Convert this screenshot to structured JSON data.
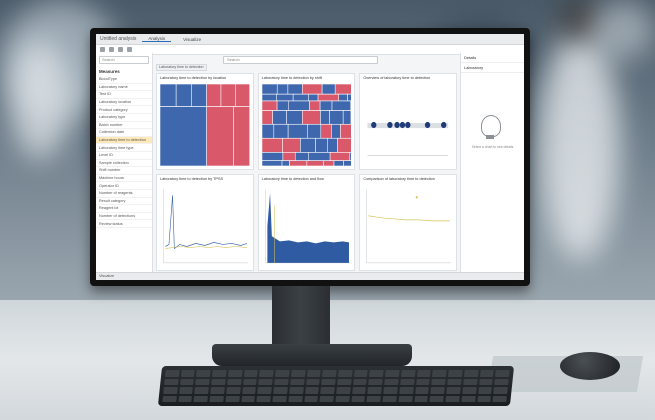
{
  "app": {
    "window_title": "Untitled analysis",
    "tabs": [
      "Analysis",
      "Visualize"
    ],
    "sidebar_header": "Measures",
    "sidebar_search": "Search",
    "main_search_placeholder": "Search",
    "filter_chip": "Laboratory time to detection",
    "status": "Visualize",
    "right_panel": {
      "header1": "Details",
      "header2": "Laboratory",
      "hint": "Select a chart to see details"
    },
    "sidebar_items": [
      "BloodType",
      "Laboratory name",
      "Test ID",
      "Laboratory location",
      "Product category",
      "Laboratory type",
      "Batch number",
      "Collection date",
      "Laboratory time to detection",
      "Laboratory time type",
      "Level ID",
      "Sample collection",
      "Shift number",
      "Machine hours",
      "Operator ID",
      "Number of reagents",
      "Result category",
      "Reagent lot",
      "Number of detections",
      "Review status"
    ],
    "charts": [
      {
        "title": "Laboratory time to detection by location"
      },
      {
        "title": "Laboratory time to detection by shift"
      },
      {
        "title": "Overview of laboratory time to detection"
      },
      {
        "title": "Laboratory time to detection by TPSS"
      },
      {
        "title": "Laboratory time to detection and flow"
      },
      {
        "title": "Comparison of laboratory time to detection"
      }
    ]
  },
  "colors": {
    "red": "#d9586a",
    "blue": "#3f67ad",
    "navy": "#1f3b78",
    "yellow": "#d7c25a"
  }
}
